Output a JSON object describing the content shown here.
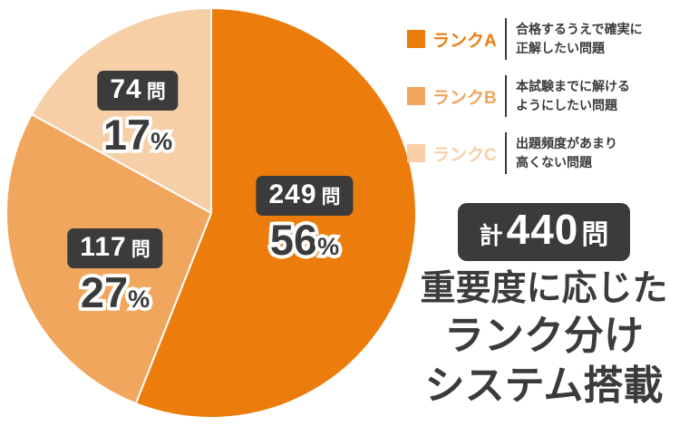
{
  "chart_data": {
    "type": "pie",
    "title": "",
    "categories": [
      "ランクA",
      "ランクB",
      "ランクC"
    ],
    "values": [
      249,
      117,
      74
    ],
    "percentages": [
      56,
      27,
      17
    ],
    "unit": "問",
    "total": 440,
    "colors": [
      "#EC7D0D",
      "#F0A65C",
      "#F6CFA6"
    ],
    "start_angle_deg": 0,
    "direction": "clockwise",
    "legend_position": "top-right"
  },
  "pie_labels": [
    {
      "count": "249",
      "unit": "問",
      "percent": "56",
      "percent_unit": "%"
    },
    {
      "count": "117",
      "unit": "問",
      "percent": "27",
      "percent_unit": "%"
    },
    {
      "count": "74",
      "unit": "問",
      "percent": "17",
      "percent_unit": "%"
    }
  ],
  "legend": {
    "items": [
      {
        "label": "ランクA",
        "color": "#EC7D0D",
        "desc_line1": "合格するうえで確実に",
        "desc_line2": "正解したい問題"
      },
      {
        "label": "ランクB",
        "color": "#F0A65C",
        "desc_line1": "本試験までに解ける",
        "desc_line2": "ようにしたい問題"
      },
      {
        "label": "ランクC",
        "color": "#F6CFA6",
        "desc_line1": "出題頻度があまり",
        "desc_line2": "高くない問題"
      }
    ]
  },
  "summary": {
    "total_prefix": "計",
    "total_value": "440",
    "total_unit": "問",
    "line1": "重要度に応じた",
    "line2": "ランク分け",
    "line3": "システム搭載"
  }
}
